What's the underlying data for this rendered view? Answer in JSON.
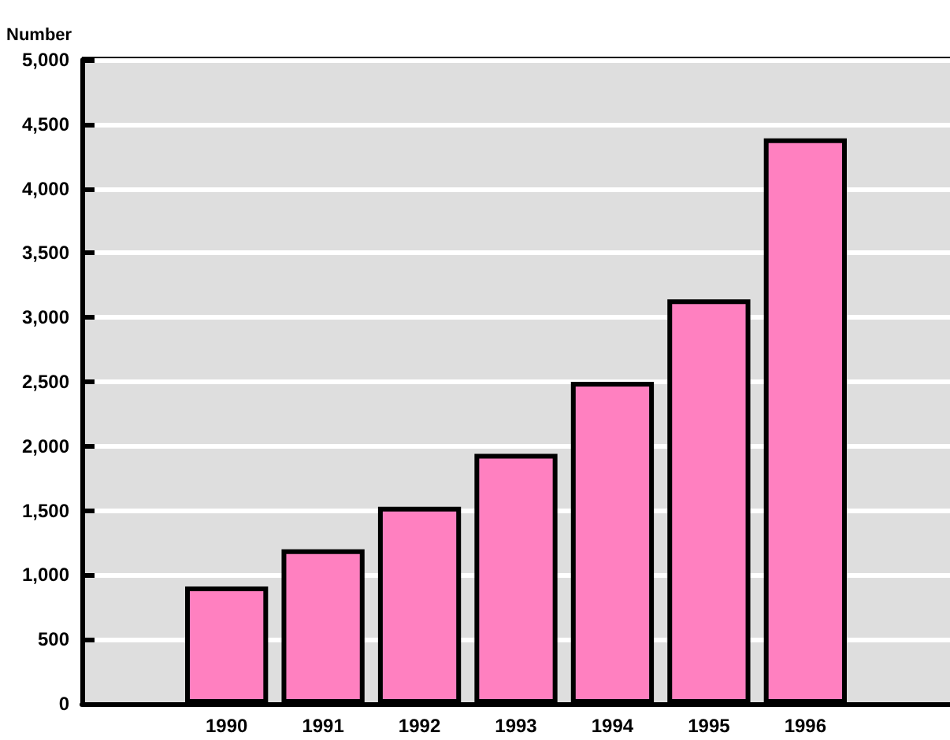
{
  "chart_data": {
    "type": "bar",
    "ylabel": "Number",
    "categories": [
      "1990",
      "1991",
      "1992",
      "1993",
      "1994",
      "1995",
      "1996"
    ],
    "values": [
      910,
      1200,
      1530,
      1940,
      2500,
      3140,
      4390
    ],
    "color": "#ff80c0",
    "ylim": [
      0,
      5000
    ],
    "yticks": [
      {
        "value": 0,
        "label": "0"
      },
      {
        "value": 500,
        "label": "500"
      },
      {
        "value": 1000,
        "label": "1,000"
      },
      {
        "value": 1500,
        "label": "1,500"
      },
      {
        "value": 2000,
        "label": "2,000"
      },
      {
        "value": 2500,
        "label": "2,500"
      },
      {
        "value": 3000,
        "label": "3,000"
      },
      {
        "value": 3500,
        "label": "3,500"
      },
      {
        "value": 4000,
        "label": "4,000"
      },
      {
        "value": 4500,
        "label": "4,500"
      },
      {
        "value": 5000,
        "label": "5,000"
      }
    ],
    "grid": "y"
  }
}
